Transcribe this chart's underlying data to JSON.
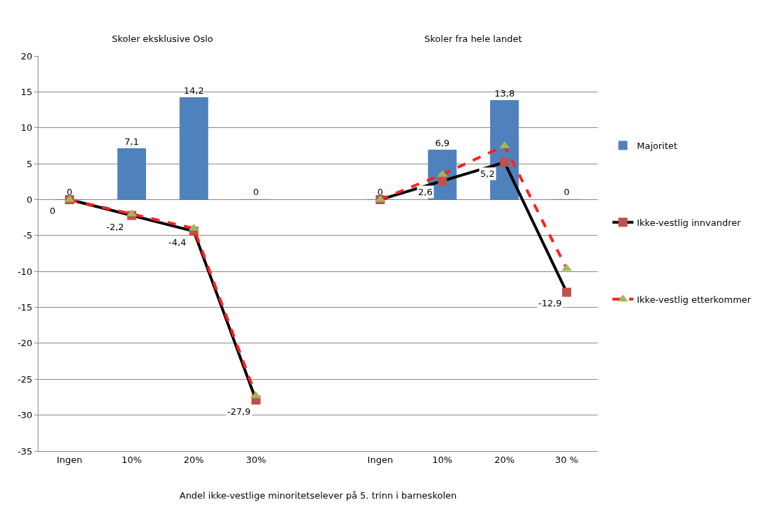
{
  "chart_data": {
    "type": "bar",
    "annotations": [
      "Skoler eksklusive Oslo",
      "Skoler fra hele landet"
    ],
    "xlabel": "Andel ikke-vestlige minoritetselever på 5. trinn i barneskolen",
    "categories": [
      "Ingen",
      "10%",
      "20%",
      "30%",
      null,
      "Ingen",
      "10%",
      "20%",
      "30 %"
    ],
    "series": [
      {
        "name": "Majoritet",
        "color": "#4f81bd",
        "values": [
          0,
          7.1,
          14.2,
          0,
          null,
          0,
          6.9,
          13.8,
          0
        ],
        "value_labels": [
          "0",
          "7,1",
          "14,2",
          "0",
          null,
          "0",
          "6,9",
          "13,8",
          "0"
        ]
      },
      {
        "name": "Ikke-vestlig innvandrer",
        "type": "line",
        "color": "#000000",
        "marker": "square",
        "line_style": "solid",
        "colors": [
          "#c0504d",
          "#c0504d",
          "#c0504d",
          "#c0504d",
          null,
          "#c0504d",
          "#c0504d",
          "#c0504d",
          "#c0504d"
        ],
        "values": [
          0,
          -2.2,
          -4.4,
          -27.9,
          null,
          0,
          2.6,
          5.2,
          -12.9
        ],
        "value_labels": [
          "0",
          "-2,2",
          "-4,4",
          "-27,9",
          null,
          null,
          "2,6",
          "5,2",
          "-12,9"
        ]
      },
      {
        "name": "Ikke-vestlig etterkommer",
        "type": "line",
        "color": "#ff2020",
        "marker": "triangle",
        "line_style": "dashed",
        "colors": [
          "#9bbb59",
          "#9bbb59",
          "#9bbb59",
          "#9bbb59",
          null,
          "#9bbb59",
          "#9bbb59",
          "#9bbb59",
          "#9bbb59"
        ],
        "values": [
          0,
          -2,
          -4,
          -27.3,
          null,
          0,
          3.5,
          7.5,
          -9.6
        ]
      }
    ],
    "ylim": [
      -35,
      20
    ],
    "yticks": [
      -35,
      -30,
      -25,
      -20,
      -15,
      -10,
      -5,
      0,
      5,
      10,
      15,
      20
    ],
    "grid": "y",
    "legend": "right"
  }
}
